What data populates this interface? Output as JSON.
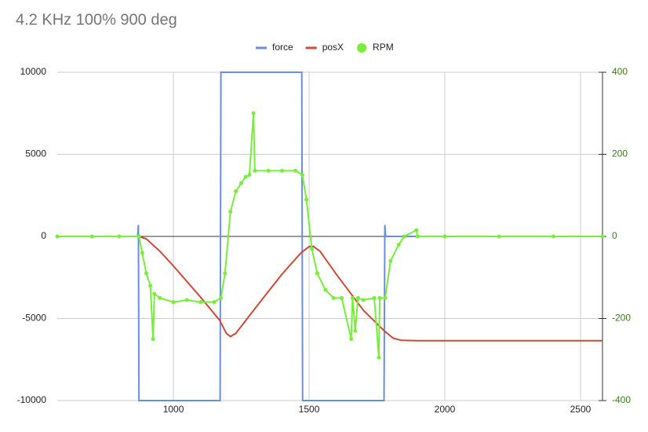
{
  "chart_data": {
    "type": "line",
    "title": "4.2 KHz 100% 900 deg",
    "xlim": [
      572,
      2581
    ],
    "xticks": [
      1000,
      1500,
      2000,
      2500
    ],
    "ylim": [
      -10000,
      10000
    ],
    "yticks": [
      -10000,
      -5000,
      0,
      5000,
      10000
    ],
    "y2lim": [
      -400,
      400
    ],
    "y2ticks": [
      -400,
      -200,
      0,
      200,
      400
    ],
    "grid": true,
    "legend": "top",
    "series": [
      {
        "name": "force",
        "color": "#6a8de3",
        "x": [
          572,
          868,
          871,
          873,
          1172,
          1175,
          1473,
          1476,
          1776,
          1779,
          1782,
          2581
        ],
        "values": [
          0,
          0,
          700,
          -10000,
          -10000,
          10000,
          10000,
          -10000,
          -10000,
          700,
          0,
          0
        ]
      },
      {
        "name": "posX",
        "color": "#cc4b37",
        "x": [
          572,
          873,
          900,
          950,
          1000,
          1100,
          1170,
          1195,
          1210,
          1230,
          1300,
          1400,
          1470,
          1500,
          1515,
          1540,
          1600,
          1700,
          1780,
          1810,
          1840,
          1900,
          2581
        ],
        "values": [
          0,
          0,
          -150,
          -900,
          -1800,
          -3700,
          -5100,
          -5900,
          -6100,
          -5900,
          -4400,
          -2300,
          -1000,
          -620,
          -600,
          -900,
          -2300,
          -4500,
          -5800,
          -6200,
          -6330,
          -6350,
          -6350
        ]
      },
      {
        "name": "RPM",
        "color": "#76ee3a",
        "axis": "y2",
        "x": [
          572,
          700,
          800,
          873,
          885,
          900,
          915,
          925,
          930,
          950,
          1000,
          1050,
          1100,
          1150,
          1175,
          1190,
          1210,
          1230,
          1250,
          1266,
          1280,
          1295,
          1300,
          1350,
          1400,
          1450,
          1475,
          1490,
          1510,
          1530,
          1560,
          1590,
          1620,
          1655,
          1660,
          1670,
          1680,
          1700,
          1740,
          1757,
          1760,
          1780,
          1800,
          1830,
          1850,
          1895,
          1900,
          2000,
          2200,
          2400,
          2581
        ],
        "values": [
          0,
          0,
          0,
          0,
          -40,
          -90,
          -120,
          -250,
          -140,
          -150,
          -160,
          -155,
          -160,
          -160,
          -150,
          -90,
          60,
          110,
          130,
          145,
          150,
          300,
          160,
          160,
          160,
          160,
          150,
          90,
          -30,
          -90,
          -130,
          -150,
          -150,
          -250,
          -150,
          -230,
          -150,
          -155,
          -150,
          -295,
          -150,
          -150,
          -60,
          -20,
          0,
          15,
          0,
          0,
          0,
          0,
          0
        ]
      }
    ]
  }
}
